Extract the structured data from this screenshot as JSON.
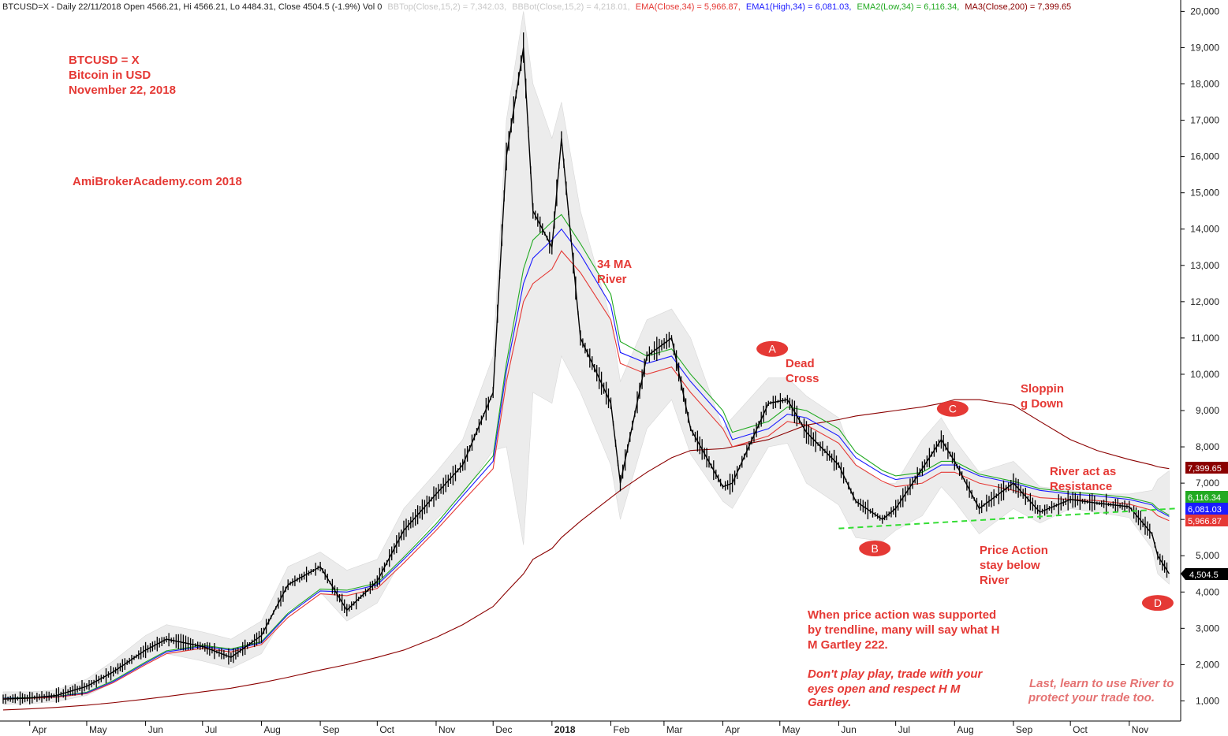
{
  "header": {
    "symbol_info": "BTCUSD=X - Daily 22/11/2018 Open 4566.21, Hi 4566.21, Lo 4484.31, Close 4504.5 (-1.9%) Vol 0",
    "bbtop": "BBTop(Close,15,2) = 7,342.03,",
    "bbbot": "BBBot(Close,15,2) = 4,218.01,",
    "ema": "EMA(Close,34) = 5,966.87,",
    "ema1": "EMA1(High,34) = 6,081.03,",
    "ema2": "EMA2(Low,34) = 6,116.34,",
    "ma3": "MA3(Close,200) = 7,399.65"
  },
  "title_block": {
    "line1": "BTCUSD = X",
    "line2": "Bitcoin in USD",
    "line3": "November 22, 2018"
  },
  "watermark": "AmiBrokerAcademy.com 2018",
  "annotations": {
    "river_1": "34 MA",
    "river_2": "River",
    "dead_1": "Dead",
    "dead_2": "Cross",
    "slope_1": "Sloppin",
    "slope_2": "g Down",
    "resist_1": "River act as",
    "resist_2": "Resistance",
    "pa_1": "Price Action",
    "pa_2": "stay below",
    "pa_3": "River",
    "note_1": "When price action was supported",
    "note_2": "by trendline, many will say what H",
    "note_3": "M Gartley 222.",
    "warn_1": "Don't play play, trade with your",
    "warn_2": "eyes open and respect H M",
    "warn_3": "Gartley.",
    "last_1": "Last, learn to use River to",
    "last_2": "protect your trade too."
  },
  "points": {
    "A": "A",
    "B": "B",
    "C": "C",
    "D": "D"
  },
  "value_tags": {
    "ma3": "7,399.65",
    "ema2": "6,116.34",
    "ema1": "6,081.03",
    "ema": "5,966.87",
    "close": "4,504.5"
  },
  "colors": {
    "price": "#000000",
    "ema": "#e53935",
    "ema1": "#1a1aff",
    "ema2": "#22aa22",
    "ma3": "#8b0000",
    "bands": "#ececec",
    "trendline": "#33dd33",
    "annotation": "#e53935"
  },
  "chart_data": {
    "type": "line",
    "title": "BTCUSD = X",
    "y_scale": "linear",
    "ylim": [
      0,
      20000
    ],
    "y_ticks": [
      "1,000",
      "2,000",
      "3,000",
      "4,000",
      "5,000",
      "6,000",
      "7,000",
      "8,000",
      "9,000",
      "10,000",
      "11,000",
      "12,000",
      "13,000",
      "14,000",
      "15,000",
      "16,000",
      "17,000",
      "18,000",
      "19,000",
      "20,000"
    ],
    "x_ticks": [
      "Apr",
      "May",
      "Jun",
      "Jul",
      "Aug",
      "Sep",
      "Oct",
      "Nov",
      "Dec",
      "2018",
      "Feb",
      "Mar",
      "Apr",
      "May",
      "Jun",
      "Jul",
      "Aug",
      "Sep",
      "Oct",
      "Nov"
    ],
    "x": [
      "2017-03-18",
      "2017-04-01",
      "2017-04-15",
      "2017-05-01",
      "2017-05-15",
      "2017-06-01",
      "2017-06-12",
      "2017-07-01",
      "2017-07-16",
      "2017-08-01",
      "2017-08-15",
      "2017-09-01",
      "2017-09-15",
      "2017-10-01",
      "2017-10-15",
      "2017-11-01",
      "2017-11-15",
      "2017-12-01",
      "2017-12-08",
      "2017-12-17",
      "2017-12-22",
      "2018-01-01",
      "2018-01-06",
      "2018-01-16",
      "2018-02-01",
      "2018-02-06",
      "2018-02-20",
      "2018-03-05",
      "2018-03-15",
      "2018-04-01",
      "2018-04-06",
      "2018-04-25",
      "2018-05-05",
      "2018-05-15",
      "2018-06-01",
      "2018-06-10",
      "2018-06-24",
      "2018-07-01",
      "2018-07-15",
      "2018-07-25",
      "2018-08-01",
      "2018-08-14",
      "2018-09-01",
      "2018-09-15",
      "2018-10-01",
      "2018-10-15",
      "2018-11-01",
      "2018-11-13",
      "2018-11-16",
      "2018-11-22"
    ],
    "series": [
      {
        "name": "Close",
        "values": [
          1050,
          1080,
          1150,
          1400,
          1800,
          2400,
          2700,
          2500,
          2200,
          2800,
          4200,
          4700,
          3500,
          4300,
          5700,
          6700,
          7500,
          9500,
          16000,
          19000,
          14500,
          13500,
          16500,
          11000,
          9200,
          7000,
          10500,
          11000,
          8500,
          6900,
          7000,
          9200,
          9300,
          8400,
          7500,
          6500,
          6000,
          6300,
          7400,
          8200,
          7600,
          6300,
          7000,
          6200,
          6550,
          6450,
          6350,
          5600,
          5000,
          4504.5
        ]
      },
      {
        "name": "EMA(Close,34)",
        "values": [
          1060,
          1070,
          1100,
          1200,
          1500,
          2000,
          2300,
          2450,
          2350,
          2550,
          3300,
          3950,
          3900,
          4100,
          4800,
          5700,
          6500,
          7400,
          9800,
          12000,
          12500,
          12900,
          13400,
          12800,
          11500,
          10300,
          10000,
          10200,
          9500,
          8500,
          8000,
          8300,
          8700,
          8600,
          8100,
          7500,
          7050,
          6900,
          7000,
          7300,
          7300,
          7000,
          6800,
          6600,
          6550,
          6520,
          6420,
          6250,
          6100,
          5966.87
        ]
      },
      {
        "name": "EMA1(High,34)",
        "values": [
          1070,
          1080,
          1110,
          1220,
          1530,
          2040,
          2350,
          2500,
          2400,
          2600,
          3380,
          4030,
          4000,
          4200,
          4900,
          5800,
          6650,
          7600,
          10100,
          12500,
          13200,
          13700,
          14000,
          13300,
          11900,
          10600,
          10300,
          10500,
          9800,
          8800,
          8200,
          8500,
          8900,
          8800,
          8300,
          7700,
          7250,
          7100,
          7200,
          7500,
          7500,
          7200,
          7000,
          6800,
          6700,
          6650,
          6550,
          6400,
          6250,
          6081.03
        ]
      },
      {
        "name": "EMA2(Low,34)",
        "values": [
          1080,
          1090,
          1120,
          1240,
          1560,
          2070,
          2380,
          2530,
          2430,
          2630,
          3420,
          4080,
          4050,
          4250,
          4960,
          5880,
          6750,
          7750,
          10300,
          12900,
          13700,
          14200,
          14400,
          13600,
          12200,
          10900,
          10500,
          10700,
          10000,
          9000,
          8400,
          8700,
          9100,
          9000,
          8500,
          7850,
          7350,
          7200,
          7300,
          7600,
          7600,
          7250,
          7050,
          6850,
          6750,
          6700,
          6600,
          6450,
          6300,
          6116.34
        ]
      },
      {
        "name": "MA3(Close,200)",
        "values": [
          750,
          780,
          820,
          880,
          950,
          1050,
          1120,
          1250,
          1350,
          1500,
          1650,
          1850,
          2000,
          2200,
          2400,
          2750,
          3100,
          3600,
          4000,
          4500,
          4900,
          5200,
          5500,
          5950,
          6600,
          6800,
          7300,
          7700,
          7900,
          7950,
          8000,
          8200,
          8400,
          8600,
          8750,
          8850,
          8950,
          9000,
          9100,
          9200,
          9300,
          9300,
          9150,
          8700,
          8200,
          7900,
          7650,
          7500,
          7450,
          7399.65
        ]
      },
      {
        "name": "BBTop(Close,15,2)",
        "values": [
          1250,
          1250,
          1300,
          1600,
          2100,
          2800,
          3100,
          2900,
          2700,
          3200,
          4700,
          5100,
          4600,
          4900,
          6300,
          7300,
          8200,
          10500,
          17000,
          20000,
          18000,
          16500,
          17500,
          14500,
          11500,
          9800,
          11500,
          11800,
          11000,
          8500,
          8800,
          9900,
          9900,
          9400,
          8800,
          7500,
          7000,
          7000,
          8200,
          8800,
          8200,
          7300,
          7600,
          6900,
          6800,
          6700,
          6700,
          6800,
          7100,
          7342.03
        ]
      },
      {
        "name": "BBBot(Close,15,2)",
        "values": [
          900,
          920,
          980,
          1150,
          1500,
          2000,
          2300,
          2100,
          1900,
          2300,
          3500,
          4000,
          3200,
          3700,
          5000,
          6000,
          6700,
          7900,
          8000,
          5300,
          9500,
          9200,
          10500,
          9500,
          7500,
          6000,
          8500,
          9300,
          7800,
          6500,
          6300,
          8000,
          8100,
          7000,
          6400,
          5500,
          5400,
          5700,
          6100,
          6900,
          6500,
          5600,
          6300,
          5900,
          6300,
          6200,
          6050,
          5200,
          4500,
          4218.01
        ]
      }
    ],
    "trendline": {
      "x": [
        "2018-06-01",
        "2018-11-25"
      ],
      "y": [
        5750,
        6300
      ]
    },
    "points": [
      {
        "label": "A",
        "x": "2018-04-27",
        "y": 10700
      },
      {
        "label": "B",
        "x": "2018-06-20",
        "y": 5200
      },
      {
        "label": "C",
        "x": "2018-07-31",
        "y": 9050
      },
      {
        "label": "D",
        "x": "2018-11-16",
        "y": 3700
      }
    ],
    "grid": false,
    "legend": "top"
  }
}
